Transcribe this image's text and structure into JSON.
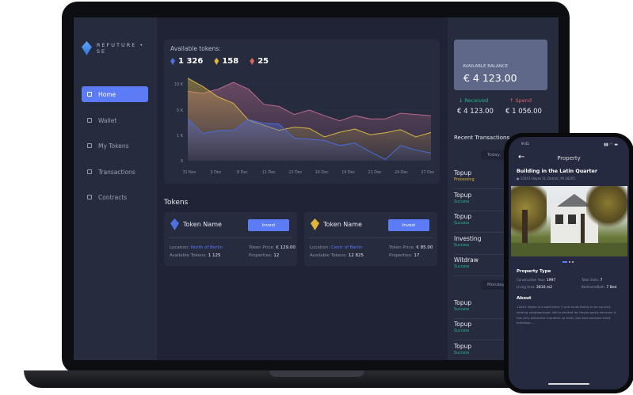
{
  "brand": "REFUTURE • SE",
  "sidebar": {
    "items": [
      {
        "label": "Home",
        "active": true
      },
      {
        "label": "Wallet"
      },
      {
        "label": "My Tokens"
      },
      {
        "label": "Transactions"
      },
      {
        "label": "Contracts"
      }
    ]
  },
  "tokens_summary": {
    "title": "Available tokens:",
    "items": [
      {
        "value": "1 326",
        "color": "#4f6fe0"
      },
      {
        "value": "158",
        "color": "#e3b43a"
      },
      {
        "value": "25",
        "color": "#d9645c"
      }
    ]
  },
  "chart_data": {
    "type": "area",
    "xlabel": "",
    "ylabel": "",
    "yticks": [
      "10 K",
      "5 K",
      "1 K",
      "0"
    ],
    "ytick_values": [
      10000,
      5000,
      1000,
      0
    ],
    "xticks": [
      "31 Nov",
      "3 Dec",
      "8 Dec",
      "11 Dec",
      "13 Dec",
      "16 Dec",
      "19 Dec",
      "21 Dec",
      "24 Dec",
      "27 Dec"
    ],
    "grid": true,
    "series": [
      {
        "color": "#b86a8c",
        "values": [
          8600,
          8200,
          9000,
          10300,
          9000,
          6100,
          5700,
          4300,
          5000,
          4100,
          3300,
          4100,
          3600,
          3600,
          4500,
          4300,
          4100
        ]
      },
      {
        "color": "#d7b441",
        "values": [
          11100,
          9500,
          7500,
          6300,
          3400,
          2600,
          1800,
          2300,
          2100,
          940,
          1500,
          2000,
          1100,
          1400,
          1900,
          940,
          1450
        ]
      },
      {
        "color": "#4c6bd6",
        "values": [
          3600,
          1300,
          1750,
          1800,
          3500,
          2900,
          2800,
          890,
          850,
          800,
          600,
          700,
          350,
          50,
          600,
          420,
          300
        ]
      }
    ]
  },
  "tokens": {
    "title": "Tokens",
    "cards": [
      {
        "name": "Token Name",
        "invest": "Invest",
        "location_label": "Location:",
        "location": "North of Berlin",
        "available_label": "Available Tokens:",
        "available": "1 125",
        "price_label": "Token Price:",
        "price": "€ 129.00",
        "properties_label": "Properties:",
        "properties": "12",
        "color": "#4f6fe0"
      },
      {
        "name": "Token Name",
        "invest": "Invest",
        "location_label": "Location:",
        "location": "Centr of Berlin",
        "available_label": "Available Tokens:",
        "available": "12 825",
        "price_label": "Token Price:",
        "price": "€ 85.00",
        "properties_label": "Properties:",
        "properties": "17",
        "color": "#e3b43a"
      }
    ]
  },
  "balance": {
    "label": "AVAILABLE BALANCE",
    "value": "€ 4 123.00",
    "received_label": "Received",
    "received": "€ 4 123.00",
    "spend_label": "Spend",
    "spend": "€ 1 056.00"
  },
  "transactions": {
    "title": "Recent Transactions",
    "groups": [
      {
        "day": "Today,",
        "items": [
          {
            "type": "Topup",
            "status": "Processing"
          },
          {
            "type": "Topup",
            "status": "Success"
          },
          {
            "type": "Topup",
            "status": "Success"
          },
          {
            "type": "Investing",
            "status": "Success"
          },
          {
            "type": "Witdraw",
            "status": "Success"
          }
        ]
      },
      {
        "day": "Monday,",
        "items": [
          {
            "type": "Topup",
            "status": "Success"
          },
          {
            "type": "Topup",
            "status": "Success"
          },
          {
            "type": "Topup",
            "status": "Success"
          }
        ]
      }
    ]
  },
  "phone": {
    "time": "9:41",
    "header": "Property",
    "title": "Building in the Latin Quarter",
    "address": "12041 Hayes St, Detroit, MI 48205",
    "section1": "Property Type",
    "construction_label": "Construction Year:",
    "construction": "1997",
    "units_label": "Total Units:",
    "units": "7",
    "area_label": "Living Area:",
    "area": "2810 m2",
    "bed_label": "Bedroom/Bath:",
    "bed": "7 Bed",
    "about_title": "About",
    "about": "12041 Hayes is a solid brick 7-unit multi-family in an up-and-coming neighborhood. We're excited for Hayes partly because it has very attractive numbers up front, but also because most buildings ..."
  }
}
